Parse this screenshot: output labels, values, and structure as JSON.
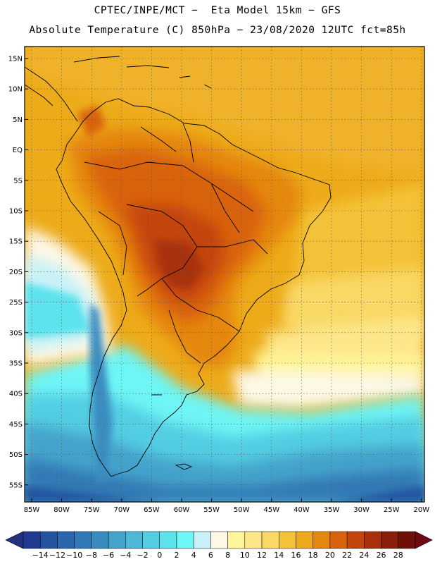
{
  "header": {
    "line1": "CPTEC/INPE/MCT −  Eta Model 15km − GFS",
    "line2": "Absolute Temperature (C) 850hPa − 23/08/2020 12UTC fct=85h"
  },
  "map": {
    "lat_labels": [
      "15N",
      "10N",
      "5N",
      "EQ",
      "5S",
      "10S",
      "15S",
      "20S",
      "25S",
      "30S",
      "35S",
      "40S",
      "45S",
      "50S",
      "55S"
    ],
    "lon_labels": [
      "85W",
      "80W",
      "75W",
      "70W",
      "65W",
      "60W",
      "55W",
      "50W",
      "45W",
      "40W",
      "35W",
      "30W",
      "25W",
      "20W"
    ],
    "grid": "dotted",
    "region": "South America"
  },
  "colorbar": {
    "labels": [
      "-14",
      "-12",
      "-10",
      "-8",
      "-6",
      "-4",
      "-2",
      "0",
      "2",
      "4",
      "6",
      "8",
      "10",
      "12",
      "14",
      "16",
      "18",
      "20",
      "22",
      "24",
      "26",
      "28"
    ],
    "colors": [
      "#1f3a8f",
      "#2454a0",
      "#2a66ac",
      "#3079b5",
      "#3a8cc0",
      "#44a3cb",
      "#4bb8d6",
      "#52cde2",
      "#5de3ec",
      "#6ef5f5",
      "#c8f2f8",
      "#fdf8e6",
      "#fff59a",
      "#fde68a",
      "#f9d865",
      "#f4c239",
      "#eda91c",
      "#e5870e",
      "#d9630d",
      "#c4450e",
      "#a8300d",
      "#8a1d0c",
      "#6e1008"
    ],
    "end_left": "#24317e",
    "end_right": "#6e0a12"
  }
}
